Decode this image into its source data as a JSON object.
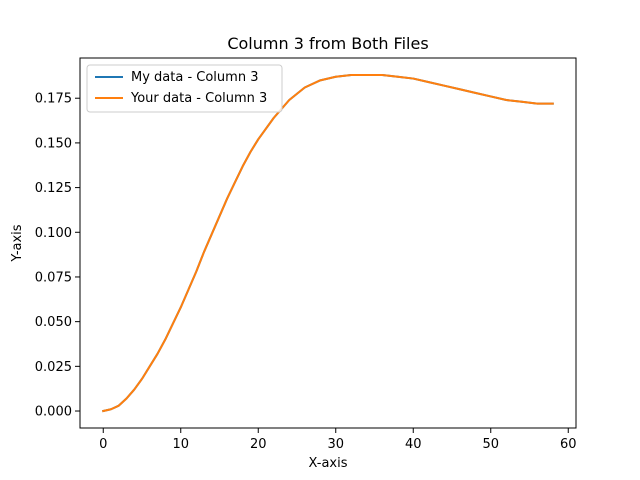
{
  "chart_data": {
    "type": "line",
    "title": "Column 3 from Both Files",
    "xlabel": "X-axis",
    "ylabel": "Y-axis",
    "xlim": [
      -3,
      61
    ],
    "ylim": [
      -0.0095,
      0.1975
    ],
    "xticks": [
      0,
      10,
      20,
      30,
      40,
      50,
      60
    ],
    "yticks": [
      0.0,
      0.025,
      0.05,
      0.075,
      0.1,
      0.125,
      0.15,
      0.175
    ],
    "ytick_labels": [
      "0.000",
      "0.025",
      "0.050",
      "0.075",
      "0.100",
      "0.125",
      "0.150",
      "0.175"
    ],
    "grid": false,
    "legend_position": "top-left",
    "x": [
      0,
      1,
      2,
      3,
      4,
      5,
      6,
      7,
      8,
      9,
      10,
      11,
      12,
      13,
      14,
      15,
      16,
      17,
      18,
      19,
      20,
      22,
      24,
      26,
      28,
      30,
      32,
      34,
      36,
      38,
      40,
      42,
      44,
      46,
      48,
      50,
      52,
      54,
      56,
      58
    ],
    "series": [
      {
        "name": "My data - Column 3",
        "color": "#1f77b4",
        "values": [
          0.0,
          0.001,
          0.003,
          0.007,
          0.012,
          0.018,
          0.025,
          0.032,
          0.04,
          0.049,
          0.058,
          0.068,
          0.078,
          0.089,
          0.099,
          0.109,
          0.119,
          0.128,
          0.137,
          0.145,
          0.152,
          0.164,
          0.174,
          0.181,
          0.185,
          0.187,
          0.188,
          0.188,
          0.188,
          0.187,
          0.186,
          0.184,
          0.182,
          0.18,
          0.178,
          0.176,
          0.174,
          0.173,
          0.172,
          0.172
        ]
      },
      {
        "name": "Your data - Column 3",
        "color": "#ff7f0e",
        "values": [
          0.0,
          0.001,
          0.003,
          0.007,
          0.012,
          0.018,
          0.025,
          0.032,
          0.04,
          0.049,
          0.058,
          0.068,
          0.078,
          0.089,
          0.099,
          0.109,
          0.119,
          0.128,
          0.137,
          0.145,
          0.152,
          0.164,
          0.174,
          0.181,
          0.185,
          0.187,
          0.188,
          0.188,
          0.188,
          0.187,
          0.186,
          0.184,
          0.182,
          0.18,
          0.178,
          0.176,
          0.174,
          0.173,
          0.172,
          0.172
        ]
      }
    ]
  }
}
